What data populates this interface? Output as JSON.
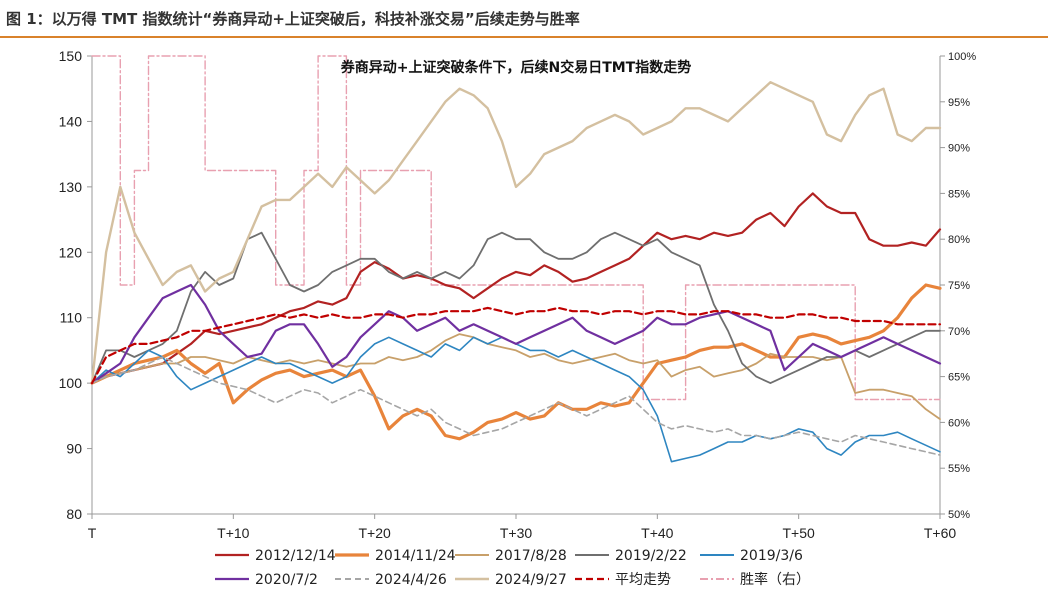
{
  "caption": "图 1：以万得 TMT 指数统计“券商异动+上证突破后，科技补涨交易”后续走势与胜率",
  "chart_data": {
    "type": "line",
    "title": "券商异动+上证突破条件下，后续N交易日TMT指数走势",
    "x_tick_labels": [
      "T",
      "T+10",
      "T+20",
      "T+30",
      "T+40",
      "T+50",
      "T+60"
    ],
    "x": [
      0,
      1,
      2,
      3,
      4,
      5,
      6,
      7,
      8,
      9,
      10,
      11,
      12,
      13,
      14,
      15,
      16,
      17,
      18,
      19,
      20,
      21,
      22,
      23,
      24,
      25,
      26,
      27,
      28,
      29,
      30,
      31,
      32,
      33,
      34,
      35,
      36,
      37,
      38,
      39,
      40,
      41,
      42,
      43,
      44,
      45,
      46,
      47,
      48,
      49,
      50,
      51,
      52,
      53,
      54,
      55,
      56,
      57,
      58,
      59,
      60
    ],
    "xlim": [
      0,
      60
    ],
    "ylim_left": [
      80,
      150
    ],
    "y_ticks_left": [
      80,
      90,
      100,
      110,
      120,
      130,
      140,
      150
    ],
    "ylim_right": [
      50,
      100
    ],
    "y_ticks_right": [
      "50%",
      "55%",
      "60%",
      "65%",
      "70%",
      "75%",
      "80%",
      "85%",
      "90%",
      "95%",
      "100%"
    ],
    "grid": false,
    "legend_position": "bottom",
    "series": [
      {
        "name": "2012/12/14",
        "color": "#b22222",
        "width": 2.2,
        "dash": "",
        "axis": "left",
        "values": [
          100,
          101,
          101.5,
          102,
          102.5,
          103,
          104.5,
          106,
          108,
          107.5,
          108,
          108.5,
          109,
          110,
          111,
          111.5,
          112.5,
          112,
          113,
          117,
          118.5,
          117.5,
          116,
          116.5,
          116,
          115,
          114.5,
          113,
          114.5,
          116,
          117,
          116.5,
          118,
          117,
          115.5,
          116,
          117,
          118,
          119,
          121,
          123,
          122,
          122.5,
          122,
          123,
          122.5,
          123,
          125,
          126,
          124,
          127,
          129,
          127,
          126,
          126,
          122,
          121,
          121,
          121.5,
          121,
          123.5
        ]
      },
      {
        "name": "2014/11/24",
        "color": "#e8843b",
        "width": 3.2,
        "dash": "",
        "axis": "left",
        "values": [
          100,
          101,
          102,
          103,
          103.5,
          104,
          105,
          103,
          101.5,
          103,
          97,
          99,
          100.5,
          101.5,
          102,
          101,
          101.5,
          102,
          101,
          102,
          98,
          93,
          95,
          96,
          95,
          92,
          91.5,
          92.5,
          94,
          94.5,
          95.5,
          94.5,
          95,
          97,
          96,
          96,
          97,
          96.5,
          97,
          100,
          103,
          103.5,
          104,
          105,
          105.5,
          105.5,
          106,
          105,
          104,
          104,
          107,
          107.5,
          107,
          106,
          106.5,
          107,
          108,
          110,
          113,
          115,
          114.5
        ]
      },
      {
        "name": "2017/8/28",
        "color": "#c8a06a",
        "width": 1.8,
        "dash": "",
        "axis": "left",
        "values": [
          100,
          101,
          101.5,
          102,
          102.5,
          103,
          103,
          104,
          104,
          103.5,
          103,
          104,
          103.5,
          103,
          103.5,
          103,
          103.5,
          103,
          102.5,
          103,
          103,
          104,
          103.5,
          104,
          105,
          106.5,
          107.5,
          107,
          106,
          105.5,
          105,
          104,
          104.5,
          103.5,
          103,
          103.5,
          104,
          104.5,
          103.5,
          103,
          103.5,
          101,
          102,
          102.5,
          101,
          101.5,
          102,
          103,
          104.5,
          104,
          104,
          104,
          103.5,
          104,
          98.5,
          99,
          99,
          98.5,
          98,
          96,
          94.5
        ]
      },
      {
        "name": "2019/2/22",
        "color": "#6f6f6f",
        "width": 1.8,
        "dash": "",
        "axis": "left",
        "values": [
          100,
          105,
          105,
          104,
          105,
          106,
          108,
          114,
          117,
          115,
          116,
          122,
          123,
          119,
          115,
          114,
          115,
          117,
          118,
          119,
          119,
          117,
          116,
          117,
          116,
          117,
          116,
          118,
          122,
          123,
          122,
          122,
          120,
          119,
          119,
          120,
          122,
          123,
          122,
          121,
          122,
          120,
          119,
          118,
          112,
          108,
          103,
          101,
          100,
          101,
          102,
          103,
          104,
          104,
          105,
          104,
          105,
          106,
          107,
          108,
          108
        ]
      },
      {
        "name": "2019/3/6",
        "color": "#2e86c1",
        "width": 1.6,
        "dash": "",
        "axis": "left",
        "values": [
          100,
          102,
          101,
          103,
          105,
          104,
          101,
          99,
          100,
          101,
          102,
          103,
          104,
          103,
          103,
          102,
          101,
          100,
          101,
          104,
          106,
          107,
          106,
          105,
          104,
          106,
          105,
          107,
          106,
          107,
          106,
          105,
          105,
          104,
          105,
          104,
          103,
          102,
          101,
          99,
          95,
          88,
          88.5,
          89,
          90,
          91,
          91,
          92,
          91.5,
          92,
          93,
          92.5,
          90,
          89,
          91,
          92,
          92,
          92.5,
          91.5,
          90.5,
          89.5
        ]
      },
      {
        "name": "2020/7/2",
        "color": "#7030a0",
        "width": 2.2,
        "dash": "",
        "axis": "left",
        "values": [
          100,
          101.5,
          103,
          107,
          110,
          113,
          114,
          115,
          112,
          108,
          106,
          104,
          104.5,
          108,
          109,
          109,
          106,
          102.5,
          104,
          107,
          109,
          111,
          110,
          108,
          109,
          110,
          108,
          109,
          108,
          107,
          106,
          107,
          108,
          109,
          110,
          108,
          107,
          106,
          107,
          108,
          110,
          109,
          109,
          110,
          110.5,
          111,
          110,
          109,
          108,
          102,
          104,
          106,
          105,
          104,
          105,
          106,
          107,
          106,
          105,
          104,
          103
        ]
      },
      {
        "name": "2024/4/26",
        "color": "#a6a6a6",
        "width": 1.6,
        "dash": "6,4",
        "axis": "left",
        "values": [
          100,
          101,
          101.5,
          102,
          103,
          104,
          103,
          102,
          101,
          100,
          99.5,
          99,
          98,
          97,
          98,
          99,
          98.5,
          97,
          98,
          99,
          98,
          97,
          96,
          95,
          96,
          94,
          93,
          92,
          92.5,
          93,
          94,
          95,
          96,
          97,
          96,
          95,
          96,
          97,
          98,
          96,
          94,
          93,
          93.5,
          93,
          92.5,
          93,
          92,
          92,
          91.5,
          92,
          92.5,
          92,
          91.5,
          91,
          92,
          91.5,
          91,
          90.5,
          90,
          89.5,
          89
        ]
      },
      {
        "name": "2024/9/27",
        "color": "#d4c0a0",
        "width": 2.4,
        "dash": "",
        "axis": "left",
        "values": [
          100,
          120,
          130,
          123,
          119,
          115,
          117,
          118,
          114,
          116,
          117,
          122,
          127,
          128,
          128,
          130,
          132,
          130,
          133,
          131,
          129,
          131,
          134,
          137,
          140,
          143,
          145,
          144,
          142,
          137,
          130,
          132,
          135,
          136,
          137,
          139,
          140,
          141,
          140,
          138,
          139,
          140,
          142,
          142,
          141,
          140,
          142,
          144,
          146,
          145,
          144,
          143,
          138,
          137,
          141,
          144,
          145,
          138,
          137,
          139,
          139
        ]
      },
      {
        "name": "平均走势",
        "color": "#c00000",
        "width": 2.2,
        "dash": "7,4",
        "axis": "left",
        "values": [
          100,
          104,
          105,
          106,
          106,
          106.5,
          107,
          108,
          108,
          108.5,
          109,
          109.5,
          110,
          110.5,
          110,
          110.5,
          110,
          110.5,
          110,
          110,
          110.5,
          110.5,
          110,
          110.5,
          110.5,
          111,
          111,
          111,
          111.5,
          111,
          110.5,
          111,
          111,
          111.5,
          111,
          111,
          110.5,
          111,
          111,
          110.5,
          111,
          111,
          110.5,
          110.5,
          111,
          111,
          110.5,
          110.5,
          110,
          110,
          110.5,
          110.5,
          110,
          110,
          109.5,
          109.5,
          109.5,
          109,
          109,
          109,
          109
        ]
      },
      {
        "name": "胜率（右）",
        "color": "#e8a0b0",
        "width": 1.4,
        "dash": "8,3,2,3",
        "axis": "right",
        "values": [
          100,
          100,
          75,
          87.5,
          100,
          100,
          100,
          100,
          87.5,
          87.5,
          87.5,
          87.5,
          87.5,
          75,
          75,
          87.5,
          100,
          100,
          75,
          87.5,
          87.5,
          87.5,
          87.5,
          87.5,
          75,
          75,
          75,
          75,
          75,
          75,
          75,
          75,
          75,
          75,
          75,
          75,
          75,
          75,
          75,
          62.5,
          62.5,
          62.5,
          75,
          75,
          75,
          75,
          75,
          75,
          75,
          75,
          75,
          75,
          75,
          75,
          62.5,
          62.5,
          62.5,
          62.5,
          62.5,
          62.5,
          62.5
        ]
      }
    ]
  },
  "legend": [
    {
      "label": "2012/12/14",
      "color": "#b22222",
      "dash": "",
      "width": 2.2
    },
    {
      "label": "2014/11/24",
      "color": "#e8843b",
      "dash": "",
      "width": 3.2
    },
    {
      "label": "2017/8/28",
      "color": "#c8a06a",
      "dash": "",
      "width": 1.8
    },
    {
      "label": "2019/2/22",
      "color": "#6f6f6f",
      "dash": "",
      "width": 1.8
    },
    {
      "label": "2019/3/6",
      "color": "#2e86c1",
      "dash": "",
      "width": 1.6
    },
    {
      "label": "2020/7/2",
      "color": "#7030a0",
      "dash": "",
      "width": 2.2
    },
    {
      "label": "2024/4/26",
      "color": "#a6a6a6",
      "dash": "6,4",
      "width": 1.6
    },
    {
      "label": "2024/9/27",
      "color": "#d4c0a0",
      "dash": "",
      "width": 2.4
    },
    {
      "label": "平均走势",
      "color": "#c00000",
      "dash": "7,4",
      "width": 2.2
    },
    {
      "label": "胜率（右）",
      "color": "#e8a0b0",
      "dash": "8,3,2,3",
      "width": 1.4
    }
  ]
}
